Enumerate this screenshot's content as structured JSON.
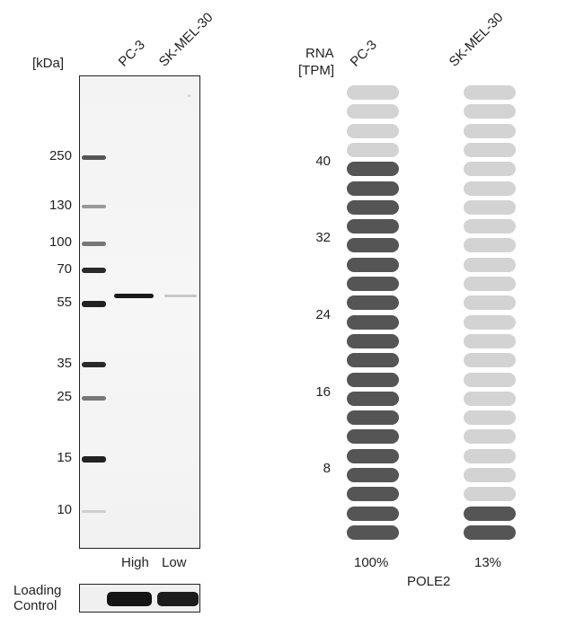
{
  "western_blot": {
    "unit_label": "[kDa]",
    "lanes": [
      "PC-3",
      "SK-MEL-30"
    ],
    "markers": [
      "250",
      "130",
      "100",
      "70",
      "55",
      "35",
      "25",
      "15",
      "10"
    ],
    "lane_levels": [
      "High",
      "Low"
    ],
    "loading_control_line1": "Loading",
    "loading_control_line2": "Control"
  },
  "rna_chart": {
    "axis_label_line1": "RNA",
    "axis_label_line2": "[TPM]",
    "ticks": [
      "40",
      "32",
      "24",
      "16",
      "8"
    ],
    "gene": "POLE2",
    "colors": {
      "filled": "#555555",
      "empty": "#d3d3d3"
    },
    "chart_data": {
      "type": "bar",
      "categories": [
        "PC-3",
        "SK-MEL-30"
      ],
      "values_percent": [
        100,
        13
      ],
      "value_labels": [
        "100%",
        "13%"
      ],
      "total_segments": 24,
      "filled_segments": [
        20,
        2
      ]
    }
  }
}
